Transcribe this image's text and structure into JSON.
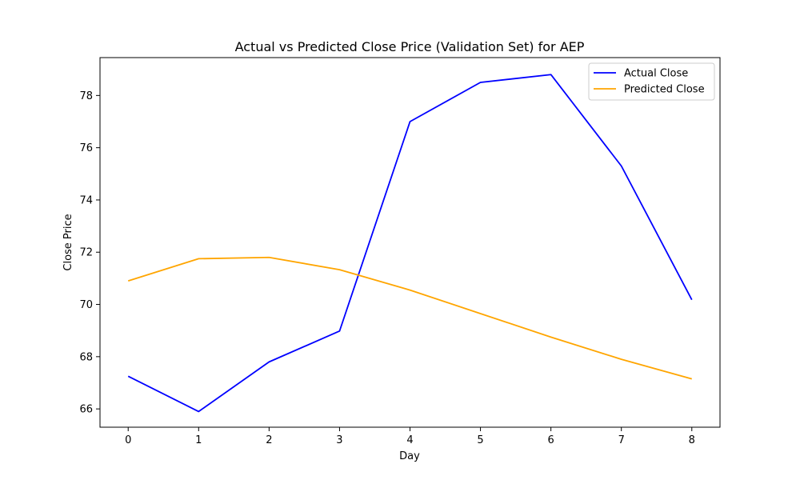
{
  "chart_data": {
    "type": "line",
    "title": "Actual vs Predicted Close Price (Validation Set) for AEP",
    "xlabel": "Day",
    "ylabel": "Close Price",
    "x": [
      0,
      1,
      2,
      3,
      4,
      5,
      6,
      7,
      8
    ],
    "xlim": [
      -0.4,
      8.4
    ],
    "ylim": [
      65.3,
      79.45
    ],
    "xticks": [
      "0",
      "1",
      "2",
      "3",
      "4",
      "5",
      "6",
      "7",
      "8"
    ],
    "yticks": [
      66,
      68,
      70,
      72,
      74,
      76,
      78
    ],
    "grid": false,
    "legend_position": "top-right",
    "series": [
      {
        "name": "Actual Close",
        "color": "#0000ff",
        "values": [
          67.25,
          65.9,
          67.8,
          68.98,
          77.0,
          78.5,
          78.8,
          75.3,
          70.18
        ]
      },
      {
        "name": "Predicted Close",
        "color": "#ffa500",
        "values": [
          70.9,
          71.75,
          71.8,
          71.33,
          70.55,
          69.65,
          68.75,
          67.9,
          67.15
        ]
      }
    ]
  }
}
